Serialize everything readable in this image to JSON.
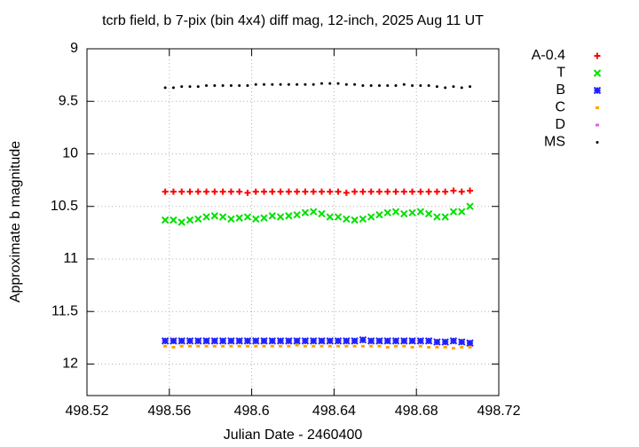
{
  "chart_data": {
    "type": "scatter",
    "title": "tcrb field, b 7-pix (bin 4x4) diff mag, 12-inch, 2025 Aug 11 UT",
    "x_label": "Julian Date - 2460400",
    "y_label": "Approximate b magnitude",
    "xlim": [
      498.52,
      498.72
    ],
    "xticks": [
      498.52,
      498.56,
      498.6,
      498.64,
      498.68,
      498.72
    ],
    "ylim": [
      9,
      12.3
    ],
    "yticks": [
      9,
      9.5,
      10,
      10.5,
      11,
      11.5,
      12
    ],
    "y_reversed": true,
    "grid": true,
    "legend": "right",
    "x": [
      498.558,
      498.562,
      498.566,
      498.57,
      498.574,
      498.578,
      498.582,
      498.586,
      498.59,
      498.594,
      498.598,
      498.602,
      498.606,
      498.61,
      498.614,
      498.618,
      498.622,
      498.626,
      498.63,
      498.634,
      498.638,
      498.642,
      498.646,
      498.65,
      498.654,
      498.658,
      498.662,
      498.666,
      498.67,
      498.674,
      498.678,
      498.682,
      498.686,
      498.69,
      498.694,
      498.698,
      498.702,
      498.706
    ],
    "series": [
      {
        "name": "A-0.4",
        "color": "#ff0000",
        "marker": "plus",
        "values": [
          10.36,
          10.36,
          10.36,
          10.36,
          10.36,
          10.36,
          10.36,
          10.36,
          10.36,
          10.36,
          10.37,
          10.36,
          10.36,
          10.36,
          10.36,
          10.36,
          10.36,
          10.36,
          10.36,
          10.36,
          10.36,
          10.36,
          10.37,
          10.36,
          10.36,
          10.36,
          10.36,
          10.36,
          10.36,
          10.36,
          10.36,
          10.36,
          10.36,
          10.36,
          10.36,
          10.35,
          10.36,
          10.35
        ]
      },
      {
        "name": "T",
        "color": "#00e000",
        "marker": "cross",
        "values": [
          10.63,
          10.63,
          10.65,
          10.63,
          10.62,
          10.6,
          10.59,
          10.6,
          10.62,
          10.61,
          10.6,
          10.62,
          10.61,
          10.59,
          10.6,
          10.59,
          10.58,
          10.56,
          10.55,
          10.57,
          10.6,
          10.6,
          10.62,
          10.63,
          10.62,
          10.6,
          10.58,
          10.56,
          10.55,
          10.57,
          10.56,
          10.55,
          10.57,
          10.6,
          10.6,
          10.55,
          10.55,
          10.5
        ]
      },
      {
        "name": "B",
        "color": "#2020ff",
        "marker": "star",
        "values": [
          11.78,
          11.78,
          11.78,
          11.78,
          11.78,
          11.78,
          11.78,
          11.78,
          11.78,
          11.78,
          11.78,
          11.78,
          11.78,
          11.78,
          11.78,
          11.78,
          11.78,
          11.78,
          11.78,
          11.78,
          11.78,
          11.78,
          11.78,
          11.78,
          11.77,
          11.78,
          11.78,
          11.78,
          11.78,
          11.78,
          11.78,
          11.78,
          11.78,
          11.79,
          11.79,
          11.78,
          11.79,
          11.8
        ]
      },
      {
        "name": "C",
        "color": "#ffa500",
        "marker": "square",
        "values": [
          11.83,
          11.84,
          11.83,
          11.83,
          11.83,
          11.83,
          11.83,
          11.83,
          11.83,
          11.83,
          11.83,
          11.83,
          11.83,
          11.83,
          11.83,
          11.83,
          11.82,
          11.83,
          11.83,
          11.83,
          11.83,
          11.83,
          11.83,
          11.83,
          11.83,
          11.83,
          11.83,
          11.84,
          11.83,
          11.83,
          11.84,
          11.83,
          11.84,
          11.84,
          11.84,
          11.85,
          11.84,
          11.84
        ]
      },
      {
        "name": "D",
        "color": "#e060e0",
        "marker": "square",
        "values": [
          null,
          null,
          null,
          null,
          null,
          null,
          null,
          null,
          null,
          null,
          null,
          null,
          null,
          null,
          null,
          null,
          null,
          null,
          null,
          null,
          null,
          null,
          null,
          null,
          null,
          null,
          null,
          null,
          null,
          null,
          null,
          null,
          null,
          null,
          null,
          null,
          null,
          null
        ]
      },
      {
        "name": "MS",
        "color": "#000000",
        "marker": "dot",
        "values": [
          9.37,
          9.37,
          9.36,
          9.36,
          9.36,
          9.35,
          9.35,
          9.35,
          9.35,
          9.35,
          9.35,
          9.34,
          9.34,
          9.34,
          9.34,
          9.34,
          9.34,
          9.34,
          9.34,
          9.33,
          9.33,
          9.33,
          9.34,
          9.34,
          9.35,
          9.35,
          9.35,
          9.35,
          9.35,
          9.34,
          9.35,
          9.35,
          9.35,
          9.36,
          9.37,
          9.36,
          9.37,
          9.36
        ]
      }
    ]
  }
}
